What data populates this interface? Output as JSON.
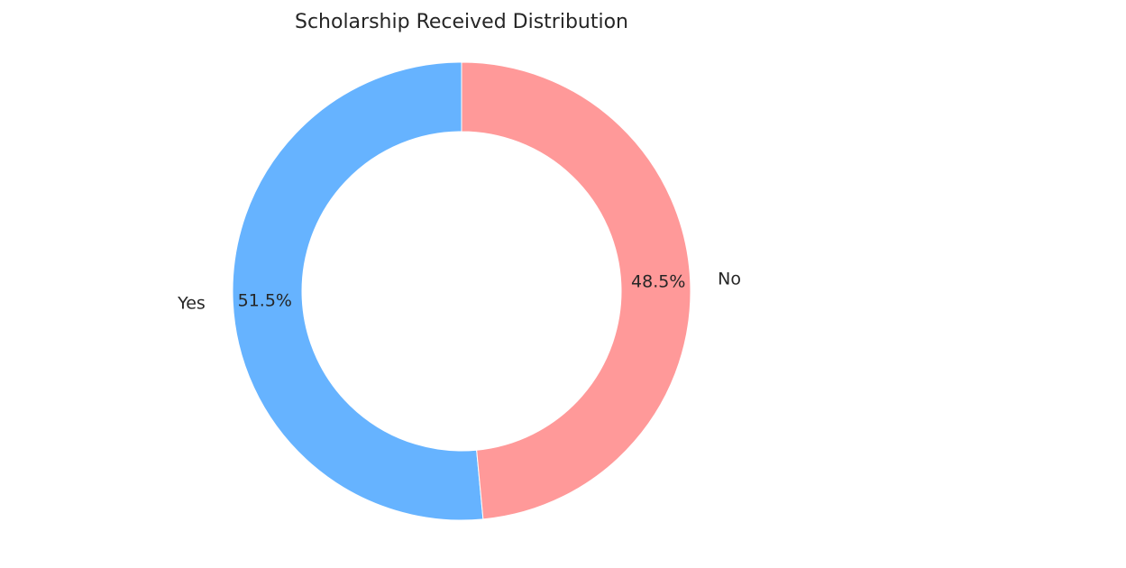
{
  "chart_data": {
    "type": "pie",
    "title": "Scholarship Received Distribution",
    "categories": [
      "Yes",
      "No"
    ],
    "values": [
      51.5,
      48.5
    ],
    "value_labels": [
      "51.5%",
      "48.5%"
    ],
    "colors": [
      "#66b3ff",
      "#ff9999"
    ],
    "donut": true,
    "legend": "none"
  }
}
